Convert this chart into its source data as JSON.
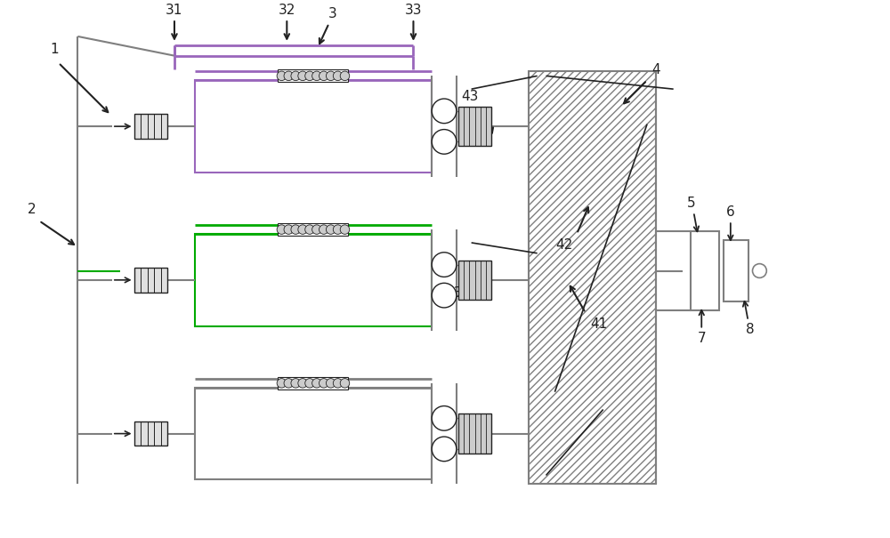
{
  "bg_color": "#ffffff",
  "line_color": "#7f7f7f",
  "green_color": "#00aa00",
  "purple_color": "#9966bb",
  "dark_color": "#222222",
  "label_fs": 11,
  "rows": [
    {
      "pipe_color": "#9966bb",
      "label_color": "#9966bb"
    },
    {
      "pipe_color": "#00aa00",
      "label_color": "#00aa00"
    },
    {
      "pipe_color": "#7f7f7f",
      "label_color": "#7f7f7f"
    }
  ]
}
